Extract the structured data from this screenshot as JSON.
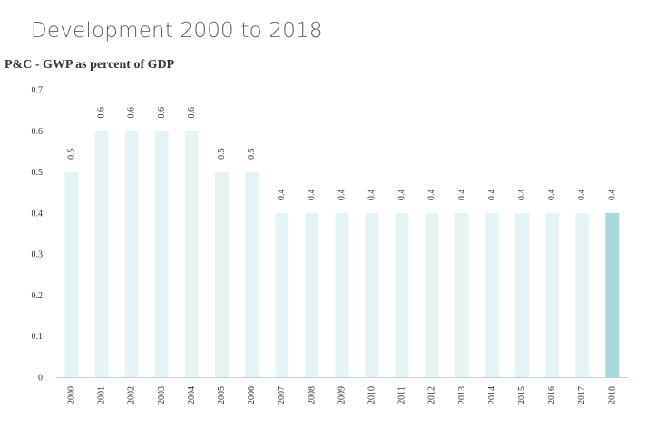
{
  "page": {
    "title": "Development 2000 to 2018"
  },
  "chart_data": {
    "type": "bar",
    "title": "P&C - GWP as percent of GDP",
    "xlabel": "",
    "ylabel": "",
    "ylim": [
      0,
      0.7
    ],
    "yticks": [
      "0",
      "0.1",
      "0.2",
      "0.3",
      "0.4",
      "0.5",
      "0.6",
      "0.7"
    ],
    "categories": [
      "2000",
      "2001",
      "2002",
      "2003",
      "2004",
      "2005",
      "2006",
      "2007",
      "2008",
      "2009",
      "2010",
      "2011",
      "2012",
      "2013",
      "2014",
      "2015",
      "2016",
      "2017",
      "2018"
    ],
    "values": [
      0.5,
      0.6,
      0.6,
      0.6,
      0.6,
      0.5,
      0.5,
      0.4,
      0.4,
      0.4,
      0.4,
      0.4,
      0.4,
      0.4,
      0.4,
      0.4,
      0.4,
      0.4,
      0.4
    ],
    "data_labels": [
      "0.5",
      "0.6",
      "0.6",
      "0.6",
      "0.6",
      "0.5",
      "0.5",
      "0.4",
      "0.4",
      "0.4",
      "0.4",
      "0.4",
      "0.4",
      "0.4",
      "0.4",
      "0.4",
      "0.4",
      "0.4",
      "0.4"
    ],
    "highlight_category": "2018",
    "grid": false,
    "legend": "none",
    "colors": {
      "bar": "#e6f3f4",
      "bar_highlight": "#a9d7da",
      "axis": "#b9dadc",
      "text": "#333333"
    }
  }
}
